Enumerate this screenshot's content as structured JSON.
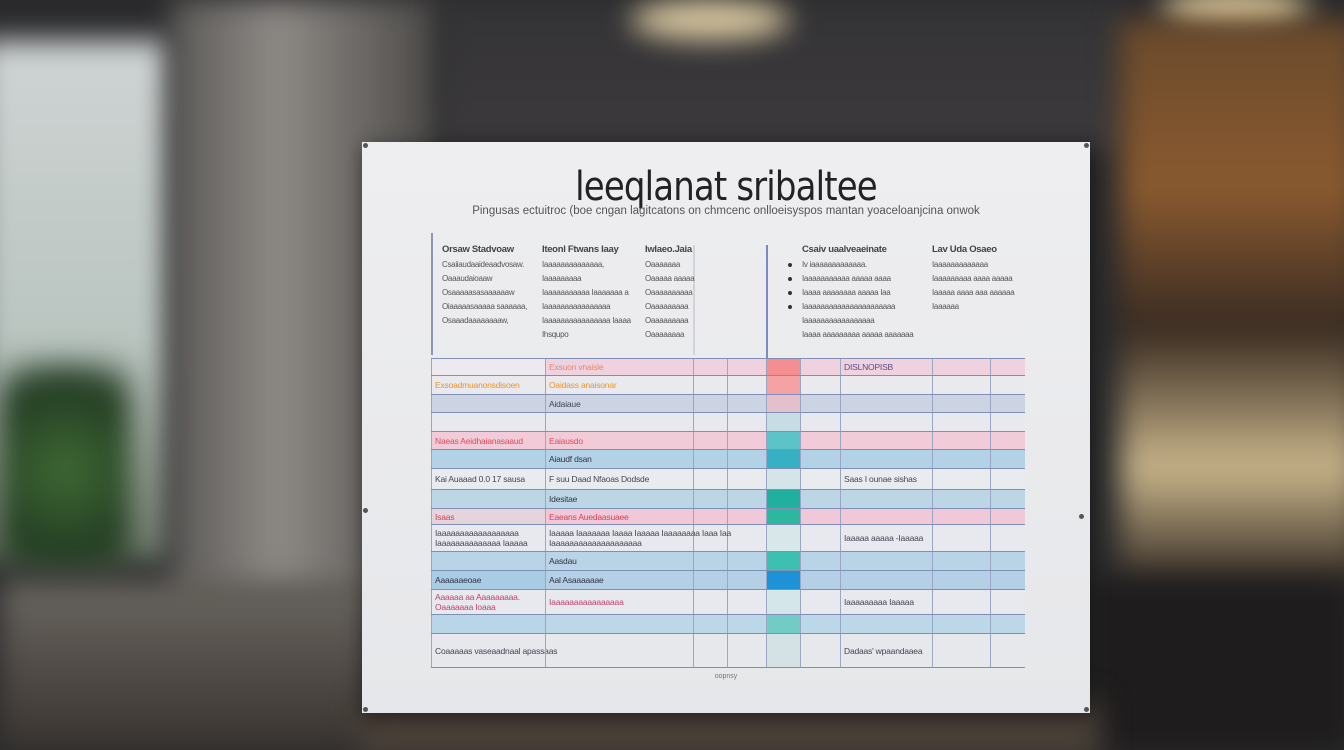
{
  "poster": {
    "title": "leeqlanat sribaltee",
    "subtitle": "Pingusas ectuitroc (boe cngan lagitcatons on chmcenc onlloeisyspos mantan yoaceloanjcina onwok",
    "header_columns": [
      {
        "heading": "Orsaw Stadvoaw",
        "lines": [
          "Csaiiaudaaideaadvosaw.",
          "Oaaaudaioaaw",
          "Osaaaaasasaaaaaaw",
          "Oiaaaaasaaaaa saaaaaa,",
          "Osaaadaaaaaaaaw,"
        ]
      },
      {
        "heading": "Iteonl Ftwans Iaay",
        "lines": [
          "Iaaaaaaaaaaaaaa,",
          "Iaaaaaaaaa",
          "Iaaaaaaaaaaa Iaaaaaaa a",
          "Iaaaaaaaaaaaaaaaa",
          "Iaaaaaaaaaaaaaaaa Iaaaa",
          "Ihsqupo"
        ]
      },
      {
        "heading": "Iwlaeo.Jaia",
        "lines": [
          "Oaaaaaaa",
          "Oaaaaa aaaaa",
          "Oaaaaaaaaaa",
          "Oaaaaaaaaa",
          "Oaaaaaaaaa",
          "Oaaaaaaaa"
        ]
      },
      {
        "heading": "Csaiv uaalveaeinate",
        "lines": [
          "Iv iaaaaaaaaaaaaa.",
          "Iaaaaaaaaaaa  aaaaa aaaa",
          "Iaaaa aaaaaaaa aaaaa Iaa",
          "Iaaaaaaaaaaaaaaaaaaaaaa",
          "Iaaaaaaaaaaaaaaaaa",
          "Iaaaa aaaaaaaaa aaaaa aaaaaaa"
        ]
      },
      {
        "heading": "Lav Uda Osaeo",
        "lines": [
          "Iaaaaaaaaaaaaa",
          "Iaaaaaaaaa aaaa aaaaa",
          "Iaaaaa aaaa aaa aaaaaa",
          "Iaaaaaa"
        ]
      }
    ],
    "table_rows": [
      {
        "c1": "",
        "c2": "Exsuon vnaisle",
        "c7": "DISLNOPISB",
        "band": "#f0d2de",
        "c1bg": "#eceaee",
        "txt": "#e08a70",
        "c7txt": "#5a4a8a",
        "accent": "#f48e90"
      },
      {
        "c1": "Exsoadmuanonsdisoen",
        "c2": "Oaidass anaisonar",
        "c7": "",
        "band": "#e9e9ee",
        "c1bg": "#e9e9ee",
        "txt": "#e8952a",
        "c7txt": "#555",
        "accent": "#f4a2a4"
      },
      {
        "c1": "",
        "c2": "Aidaiaue",
        "c7": "",
        "band": "#ccd4e4",
        "c1bg": "#ccd4e4",
        "txt": "#445",
        "c7txt": "#555",
        "accent": "#e4c0cc"
      },
      {
        "c1": "",
        "c2": "",
        "c7": "",
        "band": "#e8e9ee",
        "c1bg": "#e8e9ee",
        "txt": "#445",
        "c7txt": "#555",
        "accent": "#c8dce4"
      },
      {
        "c1": "Naeas Aeidhaianasaaud",
        "c2": "Eaiausdo",
        "c7": "",
        "band": "#f2cbd8",
        "c1bg": "#f2cbd8",
        "txt": "#e04a5a",
        "c7txt": "#555",
        "accent": "#5cc4c8"
      },
      {
        "c1": "",
        "c2": "Aiaudf dsan",
        "c7": "",
        "band": "#b4d2e6",
        "c1bg": "#b4d2e6",
        "txt": "#334",
        "c7txt": "#555",
        "accent": "#38b0c4"
      },
      {
        "c1": "Kai Auaaad 0.0 17 sausa",
        "c2": "F suu Daad Nfaoas Dodsde",
        "c7": "Saas I ounae sishas",
        "band": "#eaebef",
        "c1bg": "#eaebef",
        "txt": "#445",
        "c7txt": "#445",
        "accent": "#d4e4e8"
      },
      {
        "c1": "",
        "c2": "Idesitae",
        "c7": "",
        "band": "#bcd6e6",
        "c1bg": "#bcd6e6",
        "txt": "#334",
        "c7txt": "#555",
        "accent": "#20b0a0"
      },
      {
        "c1": "Isaas",
        "c2": "Eaeans Auedaasuaee",
        "c7": "",
        "band": "#f0c8d8",
        "c1bg": "#e3d4de",
        "txt": "#d8405a",
        "c7txt": "#555",
        "accent": "#2cb8a0"
      },
      {
        "c1": "Iaaaaaaaaaaaaaaaaaa\nIaaaaaaaaaaaaaa Iaaaaa",
        "c2": "Iaaaaa Iaaaaaaa Iaaaa Iaaaaa Iaaaaaaaa Iaaa Iaa\nIaaaaaaaaaaaaaaaaaaaa",
        "c7": "Iaaaaa aaaaa -Iaaaaa",
        "band": "#e8e9ee",
        "c1bg": "#e8e9ee",
        "txt": "#445",
        "c7txt": "#445",
        "accent": "#d8e8ea"
      },
      {
        "c1": "",
        "c2": "Aasdau",
        "c7": "",
        "band": "#b8d4e6",
        "c1bg": "#b8d4e6",
        "txt": "#334",
        "c7txt": "#555",
        "accent": "#3cc0b0"
      },
      {
        "c1": "Aaaaaaeoae",
        "c2": "Aal Asaaaaaae",
        "c7": "",
        "band": "#b4d0e4",
        "c1bg": "#a8cce4",
        "txt": "#334",
        "c7txt": "#555",
        "accent": "#1e92d6"
      },
      {
        "c1": "Aaaaaa aa Aaaaaaaaa.\nOaaaaaaa Ioaaa",
        "c2": "Iaaaaaaaaaaaaaaaa",
        "c7": "Iaaaaaaaaa Iaaaaa",
        "band": "#e8e9ee",
        "c1bg": "#e8e9ee",
        "txt": "#c04070",
        "c7txt": "#445",
        "accent": "#d4e6ea"
      },
      {
        "c1": "",
        "c2": "",
        "c7": "",
        "band": "#bcd8e8",
        "c1bg": "#b8d6e8",
        "txt": "#334",
        "c7txt": "#555",
        "accent": "#70ccc4"
      },
      {
        "c1": "Coaaaaas vaseaadnaal apassaas",
        "c2": "",
        "c7": "Dadaas' wpaandaaea",
        "band": "#e6e8ec",
        "c1bg": "#e6e8ec",
        "txt": "#445",
        "c7txt": "#445",
        "accent": "#d4e2e6"
      }
    ],
    "footer": "oopnsy"
  }
}
